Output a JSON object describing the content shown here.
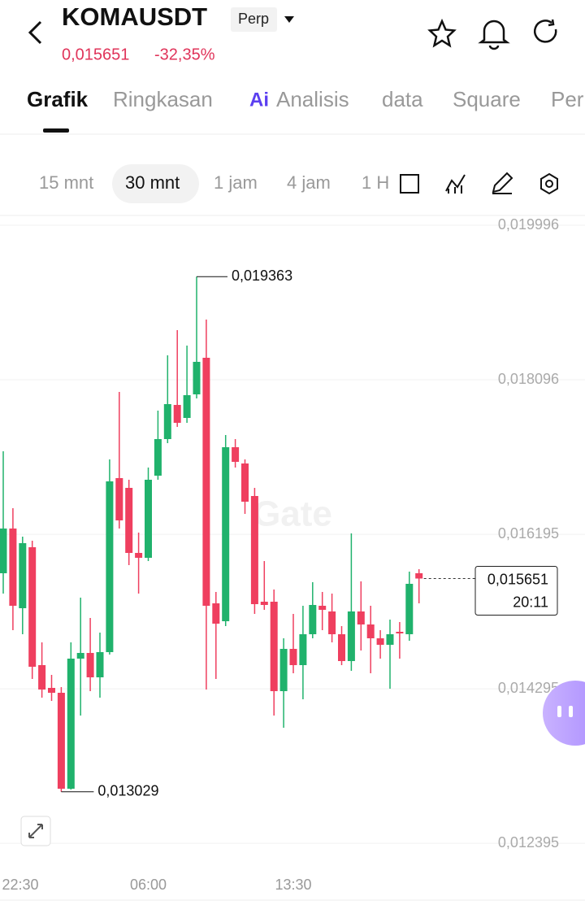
{
  "header": {
    "symbol": "KOMAUSDT",
    "badge": "Perp",
    "price": "0,015651",
    "change": "-32,35%"
  },
  "tabs": {
    "items": [
      "Grafik",
      "Ringkasan",
      "Analisis",
      "data",
      "Square",
      "Per"
    ],
    "ai_badge": "Ai",
    "active": 0
  },
  "intervals": {
    "items": [
      "15 mnt",
      "30 mnt",
      "1 jam",
      "4 jam",
      "1 H"
    ],
    "active": 1
  },
  "watermark": "Gate",
  "chart_data": {
    "type": "candlestick",
    "categories": [
      "22:30",
      null,
      null,
      null,
      null,
      null,
      null,
      null,
      null,
      null,
      null,
      null,
      null,
      null,
      null,
      "06:00",
      null,
      null,
      null,
      null,
      null,
      null,
      null,
      null,
      null,
      null,
      null,
      null,
      null,
      null,
      "13:30",
      null,
      null,
      null,
      null,
      null,
      null,
      null,
      null,
      null,
      null,
      null,
      null,
      null
    ],
    "open": [
      0.015716,
      0.016266,
      0.015286,
      0.016036,
      0.014586,
      0.014306,
      0.014246,
      0.013066,
      0.014666,
      0.014736,
      0.014436,
      0.014746,
      0.016886,
      0.016766,
      0.015966,
      0.015906,
      0.016916,
      0.017366,
      0.017786,
      0.017626,
      0.017916,
      0.018366,
      0.015346,
      0.015126,
      0.017266,
      0.017066,
      0.016666,
      0.015366,
      0.015366,
      0.014266,
      0.014786,
      0.014586,
      0.014966,
      0.015316,
      0.015246,
      0.014966,
      0.014636,
      0.015246,
      0.015086,
      0.014916,
      0.014836,
      0.014996,
      0.014966,
      0.015716
    ],
    "high": [
      0.017216,
      0.016516,
      0.016166,
      0.016116,
      0.014866,
      0.014466,
      0.014316,
      0.014866,
      0.015416,
      0.015166,
      0.014986,
      0.017116,
      0.017946,
      0.016866,
      0.016216,
      0.017016,
      0.017716,
      0.018396,
      0.018706,
      0.018516,
      0.019363,
      0.018836,
      0.015486,
      0.017416,
      0.017366,
      0.017116,
      0.016766,
      0.015866,
      0.015516,
      0.014916,
      0.015216,
      0.015316,
      0.015606,
      0.015486,
      0.015466,
      0.015066,
      0.016206,
      0.015616,
      0.015316,
      0.015016,
      0.015146,
      0.015116,
      0.015736,
      0.015766
    ],
    "low": [
      0.015466,
      0.015016,
      0.014966,
      0.014416,
      0.014186,
      0.014146,
      0.013029,
      0.013056,
      0.013966,
      0.014266,
      0.014186,
      0.014716,
      0.016266,
      0.015816,
      0.015466,
      0.015866,
      0.016866,
      0.017316,
      0.017516,
      0.017566,
      0.017866,
      0.014286,
      0.014416,
      0.015066,
      0.017016,
      0.016446,
      0.015216,
      0.015266,
      0.013966,
      0.013816,
      0.014486,
      0.014166,
      0.014916,
      0.015016,
      0.014866,
      0.014586,
      0.014516,
      0.014766,
      0.014486,
      0.014666,
      0.014296,
      0.014666,
      0.014886,
      0.015346
    ],
    "close": [
      0.016266,
      0.015316,
      0.016086,
      0.014566,
      0.014286,
      0.014246,
      0.013066,
      0.014666,
      0.014736,
      0.014436,
      0.014746,
      0.016846,
      0.016366,
      0.015966,
      0.015906,
      0.016866,
      0.017366,
      0.017796,
      0.017566,
      0.017906,
      0.018316,
      0.015316,
      0.015096,
      0.017266,
      0.017086,
      0.016596,
      0.015336,
      0.015326,
      0.014266,
      0.014786,
      0.014586,
      0.014966,
      0.015326,
      0.015266,
      0.014966,
      0.014636,
      0.015246,
      0.015086,
      0.014916,
      0.014836,
      0.014966,
      0.014976,
      0.015586,
      0.015651
    ],
    "up_color": "#20b26c",
    "down_color": "#ef3f5f",
    "ylim": [
      0.012016,
      0.020116
    ],
    "yticks": [
      {
        "value": 0.019996,
        "label": "0,019996"
      },
      {
        "value": 0.018096,
        "label": "0,018096"
      },
      {
        "value": 0.016195,
        "label": "0,016195"
      },
      {
        "value": 0.014295,
        "label": "0,014295"
      },
      {
        "value": 0.012395,
        "label": "0,012395"
      }
    ],
    "grid": true,
    "high_marker": {
      "value": 0.019363,
      "label": "0,019363"
    },
    "low_marker": {
      "value": 0.013029,
      "label": "0,013029"
    },
    "last_price": {
      "value": 0.015651,
      "label": "0,015651",
      "time": "20:11"
    }
  }
}
